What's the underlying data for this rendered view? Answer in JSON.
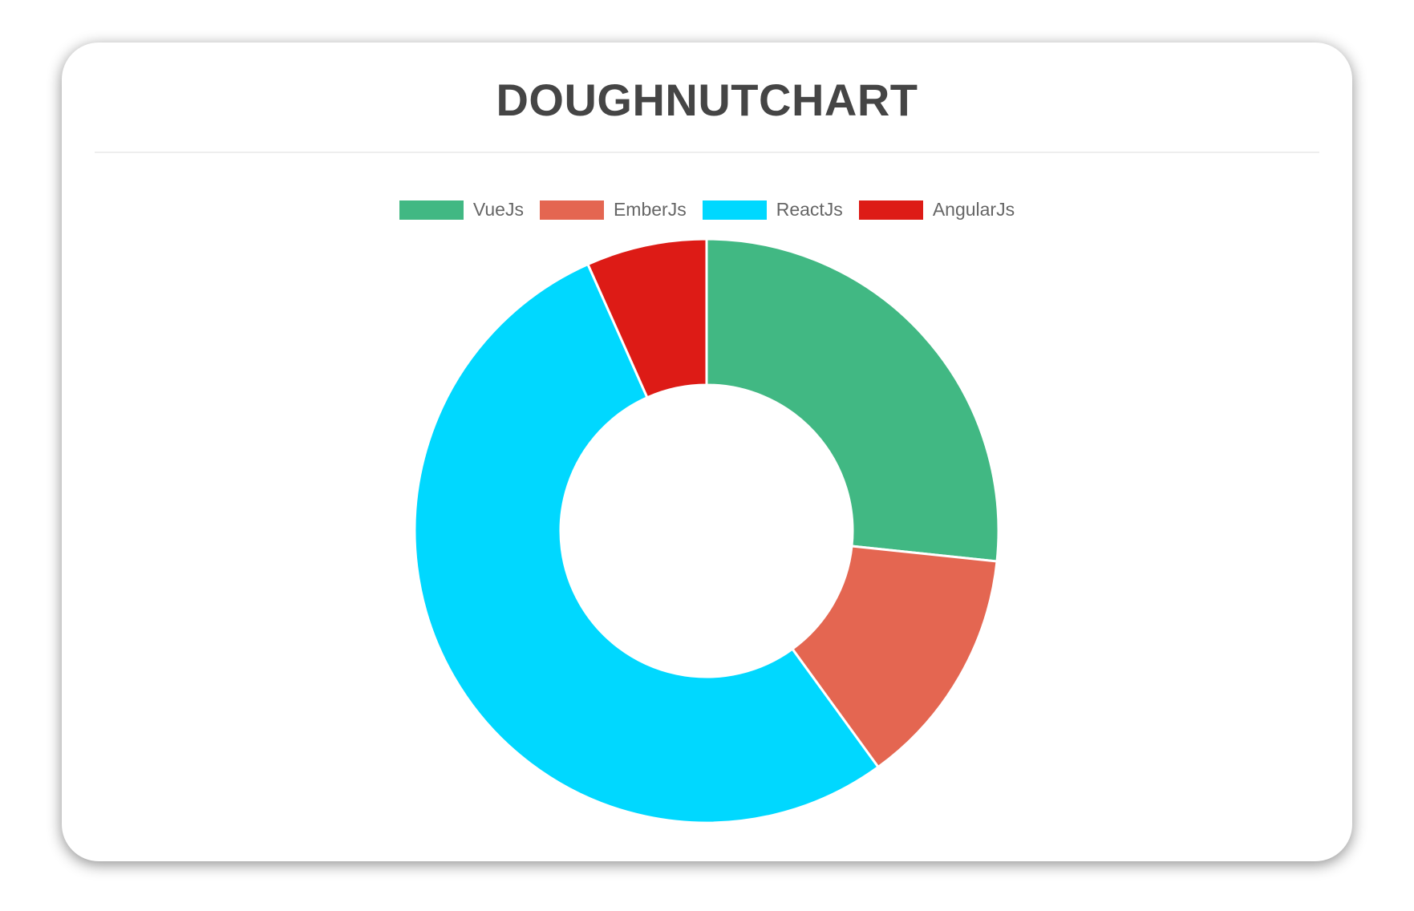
{
  "chart_data": {
    "type": "doughnut",
    "title": "DOUGHNUTCHART",
    "categories": [
      "VueJs",
      "EmberJs",
      "ReactJs",
      "AngularJs"
    ],
    "values": [
      40,
      20,
      80,
      10
    ],
    "colors": [
      "#41B883",
      "#E46651",
      "#00D8FF",
      "#DD1B16"
    ],
    "legend": "top",
    "cutout": 0.5
  }
}
